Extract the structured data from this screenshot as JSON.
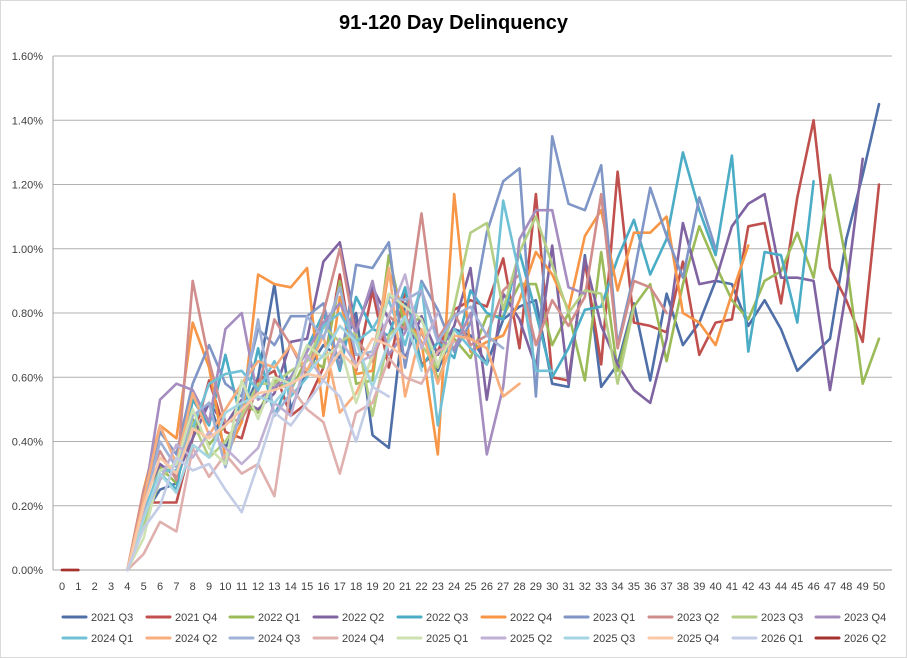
{
  "chart_data": {
    "type": "line",
    "title": "91-120 Day Delinquency",
    "xlabel": "",
    "ylabel": "",
    "x": [
      0,
      1,
      2,
      3,
      4,
      5,
      6,
      7,
      8,
      9,
      10,
      11,
      12,
      13,
      14,
      15,
      16,
      17,
      18,
      19,
      20,
      21,
      22,
      23,
      24,
      25,
      26,
      27,
      28,
      29,
      30,
      31,
      32,
      33,
      34,
      35,
      36,
      37,
      38,
      39,
      40,
      41,
      42,
      43,
      44,
      45,
      46,
      47,
      48,
      49,
      50
    ],
    "x_tick_labels": [
      "0",
      "1",
      "2",
      "3",
      "4",
      "5",
      "6",
      "7",
      "8",
      "9",
      "10",
      "11",
      "12",
      "13",
      "14",
      "15",
      "16",
      "17",
      "18",
      "19",
      "20",
      "21",
      "22",
      "23",
      "24",
      "25",
      "26",
      "27",
      "28",
      "29",
      "30",
      "31",
      "32",
      "33",
      "34",
      "35",
      "36",
      "37",
      "38",
      "39",
      "40",
      "41",
      "42",
      "43",
      "44",
      "45",
      "46",
      "47",
      "48",
      "49",
      "50"
    ],
    "ylim": [
      0,
      1.6
    ],
    "y_tick_labels": [
      "0.00%",
      "0.20%",
      "0.40%",
      "0.60%",
      "0.80%",
      "1.00%",
      "1.20%",
      "1.40%",
      "1.60%"
    ],
    "y_unit": "%",
    "grid": "horizontal",
    "legend_position": "bottom",
    "series": [
      {
        "name": "2021 Q3",
        "color": "#4f6fa8",
        "values": [
          null,
          null,
          null,
          null,
          0.0,
          0.17,
          0.25,
          0.27,
          0.45,
          0.52,
          0.38,
          0.48,
          0.6,
          0.89,
          0.5,
          0.62,
          0.7,
          0.66,
          0.8,
          0.42,
          0.38,
          0.83,
          0.74,
          0.62,
          0.75,
          0.73,
          0.64,
          0.78,
          0.82,
          0.84,
          0.58,
          0.57,
          0.98,
          0.57,
          0.64,
          0.83,
          0.59,
          0.86,
          0.7,
          0.77,
          0.9,
          0.89,
          0.76,
          0.84,
          0.75,
          0.62,
          0.67,
          0.72,
          1.03,
          1.23,
          1.45
        ]
      },
      {
        "name": "2021 Q4",
        "color": "#c0504d",
        "values": [
          0.0,
          0.0,
          null,
          null,
          0.0,
          0.21,
          0.21,
          0.21,
          0.41,
          0.59,
          0.43,
          0.41,
          0.59,
          0.62,
          0.48,
          0.52,
          0.63,
          0.92,
          0.62,
          0.87,
          0.63,
          0.87,
          0.64,
          0.68,
          0.81,
          0.84,
          0.82,
          0.97,
          0.69,
          1.17,
          0.6,
          0.59,
          0.96,
          0.64,
          1.24,
          0.77,
          0.76,
          0.74,
          0.96,
          0.67,
          0.77,
          0.78,
          1.07,
          1.08,
          0.83,
          1.16,
          1.4,
          0.94,
          0.84,
          0.71,
          1.2
        ]
      },
      {
        "name": "2022 Q1",
        "color": "#9bbb59",
        "values": [
          null,
          null,
          null,
          null,
          0.0,
          0.17,
          0.32,
          0.27,
          0.47,
          0.39,
          0.45,
          0.52,
          0.49,
          0.59,
          0.56,
          0.66,
          0.63,
          0.9,
          0.58,
          0.59,
          0.98,
          0.75,
          0.79,
          0.59,
          0.72,
          0.66,
          0.79,
          0.79,
          0.89,
          0.89,
          0.7,
          0.8,
          0.59,
          0.99,
          0.62,
          0.82,
          0.89,
          0.65,
          0.89,
          1.07,
          0.95,
          0.84,
          0.78,
          0.9,
          0.93,
          1.05,
          0.91,
          1.23,
          0.96,
          0.58,
          0.72
        ]
      },
      {
        "name": "2022 Q2",
        "color": "#8064a2",
        "values": [
          null,
          null,
          null,
          null,
          0.0,
          0.22,
          0.33,
          0.29,
          0.41,
          0.52,
          0.45,
          0.53,
          0.5,
          0.55,
          0.71,
          0.72,
          0.96,
          1.02,
          0.75,
          0.88,
          0.78,
          0.66,
          0.79,
          0.67,
          0.76,
          0.94,
          0.53,
          0.86,
          0.78,
          0.63,
          1.01,
          0.58,
          0.97,
          0.76,
          0.64,
          0.56,
          0.52,
          0.72,
          1.08,
          0.89,
          0.9,
          1.07,
          1.14,
          1.17,
          0.91,
          0.91,
          0.9,
          0.56,
          0.87,
          1.28,
          null
        ]
      },
      {
        "name": "2022 Q3",
        "color": "#4bacc6",
        "values": [
          null,
          null,
          null,
          null,
          0.0,
          0.18,
          0.3,
          0.25,
          0.53,
          0.45,
          0.67,
          0.46,
          0.69,
          0.48,
          0.6,
          0.69,
          0.8,
          0.62,
          0.85,
          0.75,
          0.73,
          0.88,
          0.63,
          0.71,
          0.66,
          0.87,
          0.8,
          0.78,
          0.99,
          0.8,
          0.6,
          0.69,
          0.81,
          0.82,
          0.97,
          1.09,
          0.92,
          1.03,
          1.3,
          1.12,
          0.98,
          1.29,
          0.68,
          0.99,
          0.98,
          0.77,
          1.21,
          null,
          null,
          null,
          null
        ]
      },
      {
        "name": "2022 Q4",
        "color": "#f79646",
        "values": [
          null,
          null,
          null,
          null,
          0.0,
          0.25,
          0.45,
          0.41,
          0.77,
          0.63,
          0.35,
          0.46,
          0.92,
          0.89,
          0.88,
          0.94,
          0.48,
          0.85,
          0.61,
          0.62,
          0.93,
          0.79,
          0.71,
          0.36,
          1.17,
          0.68,
          0.71,
          0.73,
          0.84,
          0.99,
          0.92,
          0.81,
          1.04,
          1.12,
          0.87,
          1.05,
          1.05,
          1.1,
          0.8,
          0.77,
          0.7,
          0.86,
          1.01,
          null,
          null,
          null,
          null,
          null,
          null,
          null,
          null
        ]
      },
      {
        "name": "2023 Q1",
        "color": "#7f96c6",
        "values": [
          null,
          null,
          null,
          null,
          0.0,
          0.21,
          0.43,
          0.36,
          0.58,
          0.7,
          0.58,
          0.54,
          0.75,
          0.7,
          0.79,
          0.79,
          0.83,
          0.63,
          0.95,
          0.94,
          1.02,
          0.63,
          0.9,
          0.81,
          0.68,
          0.77,
          1.05,
          1.21,
          1.25,
          0.54,
          1.35,
          1.14,
          1.12,
          1.26,
          0.7,
          0.92,
          1.19,
          1.04,
          0.91,
          1.16,
          1.0,
          null,
          null,
          null,
          null,
          null,
          null,
          null,
          null,
          null,
          null
        ]
      },
      {
        "name": "2023 Q2",
        "color": "#d08d8b",
        "values": [
          null,
          null,
          null,
          null,
          0.0,
          0.25,
          0.37,
          0.28,
          0.9,
          0.65,
          0.46,
          0.47,
          0.56,
          0.78,
          0.7,
          0.6,
          0.8,
          1.0,
          0.72,
          0.65,
          0.79,
          0.75,
          1.11,
          0.72,
          0.8,
          0.7,
          0.73,
          0.87,
          0.92,
          0.7,
          0.84,
          0.76,
          0.85,
          1.17,
          0.69,
          0.9,
          0.88,
          0.8,
          null,
          null,
          null,
          null,
          null,
          null,
          null,
          null,
          null,
          null,
          null,
          null,
          null
        ]
      },
      {
        "name": "2023 Q3",
        "color": "#b4cf84",
        "values": [
          null,
          null,
          null,
          null,
          0.0,
          0.14,
          0.28,
          0.34,
          0.46,
          0.35,
          0.4,
          0.48,
          0.58,
          0.58,
          0.62,
          0.65,
          0.76,
          0.71,
          0.74,
          0.48,
          0.73,
          0.78,
          0.7,
          0.63,
          0.82,
          1.05,
          1.08,
          0.81,
          0.99,
          1.1,
          0.95,
          0.8,
          0.87,
          0.86,
          0.58,
          0.82,
          null,
          null,
          null,
          null,
          null,
          null,
          null,
          null,
          null,
          null,
          null,
          null,
          null,
          null,
          null
        ]
      },
      {
        "name": "2023 Q4",
        "color": "#a58dbf",
        "values": [
          null,
          null,
          null,
          null,
          0.0,
          0.21,
          0.53,
          0.58,
          0.56,
          0.46,
          0.75,
          0.8,
          0.53,
          0.57,
          0.6,
          0.68,
          0.77,
          0.83,
          0.74,
          0.9,
          0.67,
          0.74,
          0.87,
          0.72,
          0.69,
          0.8,
          0.36,
          0.57,
          1.03,
          1.12,
          1.12,
          0.88,
          0.86,
          null,
          null,
          null,
          null,
          null,
          null,
          null,
          null,
          null,
          null,
          null,
          null,
          null,
          null,
          null,
          null,
          null,
          null
        ]
      },
      {
        "name": "2024 Q1",
        "color": "#70c1d6",
        "values": [
          null,
          null,
          null,
          null,
          0.0,
          0.18,
          0.31,
          0.31,
          0.44,
          0.58,
          0.61,
          0.62,
          0.56,
          0.65,
          0.54,
          0.6,
          0.76,
          0.8,
          0.71,
          0.75,
          0.84,
          0.7,
          0.89,
          0.45,
          0.75,
          0.69,
          0.64,
          1.15,
          0.92,
          0.62,
          0.62,
          null,
          null,
          null,
          null,
          null,
          null,
          null,
          null,
          null,
          null,
          null,
          null,
          null,
          null,
          null,
          null,
          null,
          null,
          null,
          null
        ]
      },
      {
        "name": "2024 Q2",
        "color": "#f8ae7c",
        "values": [
          null,
          null,
          null,
          null,
          0.0,
          0.22,
          0.45,
          0.33,
          0.55,
          0.42,
          0.5,
          0.58,
          0.65,
          0.63,
          0.7,
          0.62,
          0.73,
          0.49,
          0.55,
          0.66,
          0.94,
          0.54,
          0.75,
          0.58,
          0.73,
          0.72,
          0.69,
          0.54,
          0.58,
          null,
          null,
          null,
          null,
          null,
          null,
          null,
          null,
          null,
          null,
          null,
          null,
          null,
          null,
          null,
          null,
          null,
          null,
          null,
          null,
          null,
          null
        ]
      },
      {
        "name": "2024 Q3",
        "color": "#9fb1d6",
        "values": [
          null,
          null,
          null,
          null,
          0.0,
          0.19,
          0.4,
          0.32,
          0.48,
          0.52,
          0.32,
          0.51,
          0.78,
          0.48,
          0.55,
          0.79,
          0.72,
          0.88,
          0.67,
          0.68,
          0.85,
          0.84,
          0.87,
          0.71,
          0.79,
          0.82,
          0.73,
          0.69,
          null,
          null,
          null,
          null,
          null,
          null,
          null,
          null,
          null,
          null,
          null,
          null,
          null,
          null,
          null,
          null,
          null,
          null,
          null,
          null,
          null,
          null,
          null
        ]
      },
      {
        "name": "2024 Q4",
        "color": "#dfb0ae",
        "values": [
          null,
          null,
          null,
          null,
          0.0,
          0.05,
          0.15,
          0.12,
          0.38,
          0.29,
          0.36,
          0.3,
          0.33,
          0.23,
          0.57,
          0.5,
          0.46,
          0.3,
          0.49,
          0.52,
          0.66,
          0.6,
          0.58,
          0.68,
          0.71,
          null,
          null,
          null,
          null,
          null,
          null,
          null,
          null,
          null,
          null,
          null,
          null,
          null,
          null,
          null,
          null,
          null,
          null,
          null,
          null,
          null,
          null,
          null,
          null,
          null,
          null
        ]
      },
      {
        "name": "2025 Q1",
        "color": "#cde2b0",
        "values": [
          null,
          null,
          null,
          null,
          0.0,
          0.1,
          0.31,
          0.33,
          0.5,
          0.38,
          0.33,
          0.59,
          0.47,
          0.6,
          0.58,
          0.7,
          0.66,
          0.7,
          0.52,
          0.67,
          0.86,
          0.82,
          0.78,
          0.64,
          0.74,
          null,
          null,
          null,
          null,
          null,
          null,
          null,
          null,
          null,
          null,
          null,
          null,
          null,
          null,
          null,
          null,
          null,
          null,
          null,
          null,
          null,
          null,
          null,
          null,
          null,
          null
        ]
      },
      {
        "name": "2025 Q2",
        "color": "#bfb0d4",
        "values": [
          null,
          null,
          null,
          null,
          0.0,
          0.17,
          0.28,
          0.39,
          0.35,
          0.43,
          0.38,
          0.33,
          0.38,
          0.52,
          0.48,
          0.67,
          0.59,
          0.72,
          0.64,
          0.67,
          0.79,
          0.92,
          0.69,
          0.8,
          null,
          null,
          null,
          null,
          null,
          null,
          null,
          null,
          null,
          null,
          null,
          null,
          null,
          null,
          null,
          null,
          null,
          null,
          null,
          null,
          null,
          null,
          null,
          null,
          null,
          null,
          null
        ]
      },
      {
        "name": "2025 Q3",
        "color": "#a3d5e3",
        "values": [
          null,
          null,
          null,
          null,
          0.0,
          0.16,
          0.3,
          0.24,
          0.39,
          0.35,
          0.49,
          0.52,
          0.54,
          0.52,
          0.58,
          0.61,
          0.67,
          0.76,
          0.71,
          0.57,
          0.71,
          0.79,
          0.62,
          null,
          null,
          null,
          null,
          null,
          null,
          null,
          null,
          null,
          null,
          null,
          null,
          null,
          null,
          null,
          null,
          null,
          null,
          null,
          null,
          null,
          null,
          null,
          null,
          null,
          null,
          null,
          null
        ]
      },
      {
        "name": "2025 Q4",
        "color": "#fac8a6",
        "values": [
          null,
          null,
          null,
          null,
          0.0,
          0.2,
          0.35,
          0.3,
          0.44,
          0.41,
          0.45,
          0.5,
          0.55,
          0.56,
          0.58,
          0.61,
          0.6,
          0.68,
          0.63,
          0.72,
          0.7,
          0.66,
          null,
          null,
          null,
          null,
          null,
          null,
          null,
          null,
          null,
          null,
          null,
          null,
          null,
          null,
          null,
          null,
          null,
          null,
          null,
          null,
          null,
          null,
          null,
          null,
          null,
          null,
          null,
          null,
          null
        ]
      },
      {
        "name": "2026 Q1",
        "color": "#c3cde6",
        "values": [
          null,
          null,
          null,
          null,
          0.0,
          0.13,
          0.2,
          0.35,
          0.31,
          0.33,
          0.25,
          0.18,
          0.33,
          0.49,
          0.45,
          0.52,
          0.59,
          0.54,
          0.4,
          0.57,
          0.54,
          null,
          null,
          null,
          null,
          null,
          null,
          null,
          null,
          null,
          null,
          null,
          null,
          null,
          null,
          null,
          null,
          null,
          null,
          null,
          null,
          null,
          null,
          null,
          null,
          null,
          null,
          null,
          null,
          null,
          null
        ]
      },
      {
        "name": "2026 Q2",
        "color": "#a5322e",
        "values": [
          0.0,
          0.0,
          null,
          null,
          null,
          null,
          null,
          null,
          null,
          null,
          null,
          null,
          null,
          null,
          null,
          null,
          null,
          null,
          null,
          null,
          null,
          null,
          null,
          null,
          null,
          null,
          null,
          null,
          null,
          null,
          null,
          null,
          null,
          null,
          null,
          null,
          null,
          null,
          null,
          null,
          null,
          null,
          null,
          null,
          null,
          null,
          null,
          null,
          null,
          null,
          null
        ]
      }
    ]
  }
}
